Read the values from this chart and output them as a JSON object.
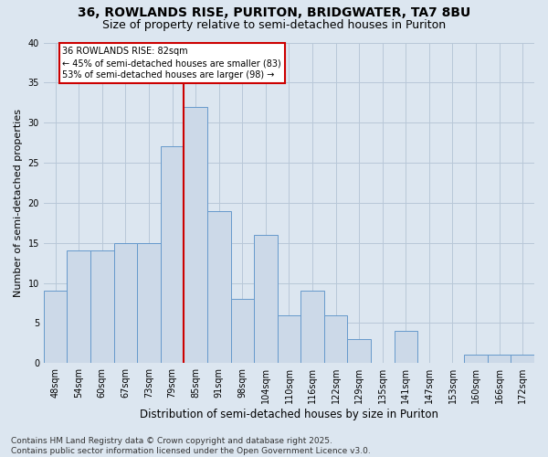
{
  "title": "36, ROWLANDS RISE, PURITON, BRIDGWATER, TA7 8BU",
  "subtitle": "Size of property relative to semi-detached houses in Puriton",
  "xlabel": "Distribution of semi-detached houses by size in Puriton",
  "ylabel": "Number of semi-detached properties",
  "categories": [
    "48sqm",
    "54sqm",
    "60sqm",
    "67sqm",
    "73sqm",
    "79sqm",
    "85sqm",
    "91sqm",
    "98sqm",
    "104sqm",
    "110sqm",
    "116sqm",
    "122sqm",
    "129sqm",
    "135sqm",
    "141sqm",
    "147sqm",
    "153sqm",
    "160sqm",
    "166sqm",
    "172sqm"
  ],
  "values": [
    9,
    14,
    14,
    15,
    15,
    27,
    32,
    19,
    8,
    16,
    6,
    9,
    6,
    3,
    0,
    4,
    0,
    0,
    1,
    1,
    1
  ],
  "bar_color": "#ccd9e8",
  "bar_edge_color": "#6699cc",
  "grid_color": "#b8c8d8",
  "background_color": "#dce6f0",
  "plot_bg_color": "#dce6f0",
  "annotation_text": "36 ROWLANDS RISE: 82sqm\n← 45% of semi-detached houses are smaller (83)\n53% of semi-detached houses are larger (98) →",
  "annotation_box_color": "#ffffff",
  "annotation_box_edge_color": "#cc0000",
  "line_color": "#cc0000",
  "line_x_index": 5.5,
  "ylim": [
    0,
    40
  ],
  "yticks": [
    0,
    5,
    10,
    15,
    20,
    25,
    30,
    35,
    40
  ],
  "footer": "Contains HM Land Registry data © Crown copyright and database right 2025.\nContains public sector information licensed under the Open Government Licence v3.0.",
  "title_fontsize": 10,
  "subtitle_fontsize": 9,
  "xlabel_fontsize": 8.5,
  "ylabel_fontsize": 8,
  "tick_fontsize": 7,
  "footer_fontsize": 6.5,
  "ann_fontsize": 7
}
